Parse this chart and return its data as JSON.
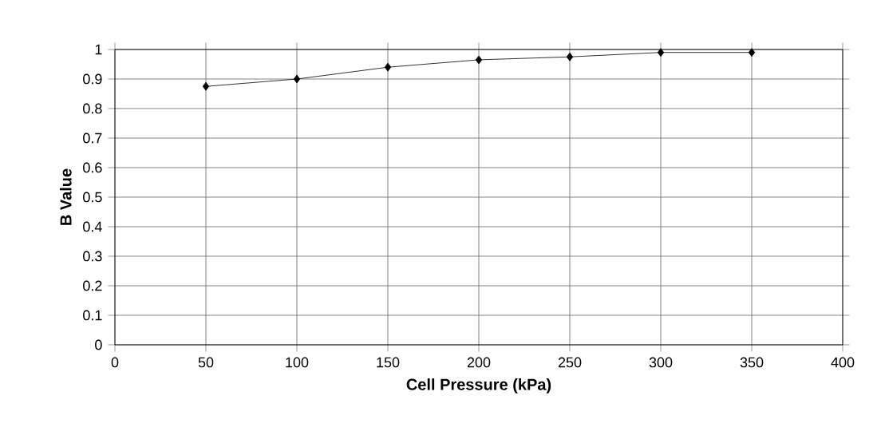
{
  "chart_data": {
    "type": "line",
    "xlabel": "Cell Pressure (kPa)",
    "ylabel": "B Value",
    "x": [
      50,
      100,
      150,
      200,
      250,
      300,
      350
    ],
    "series": [
      {
        "color": "#000000",
        "values": [
          0.875,
          0.9,
          0.94,
          0.965,
          0.975,
          0.99,
          0.99
        ]
      }
    ],
    "xlim": [
      0,
      400
    ],
    "xticks": [
      0,
      50,
      100,
      150,
      200,
      250,
      300,
      350,
      400
    ],
    "ylim": [
      0,
      1
    ],
    "yticks": [
      0,
      0.1,
      0.2,
      0.3,
      0.4,
      0.5,
      0.6,
      0.7,
      0.8,
      0.9,
      1
    ],
    "grid": true,
    "marker": "diamond",
    "line_style": "solid"
  }
}
